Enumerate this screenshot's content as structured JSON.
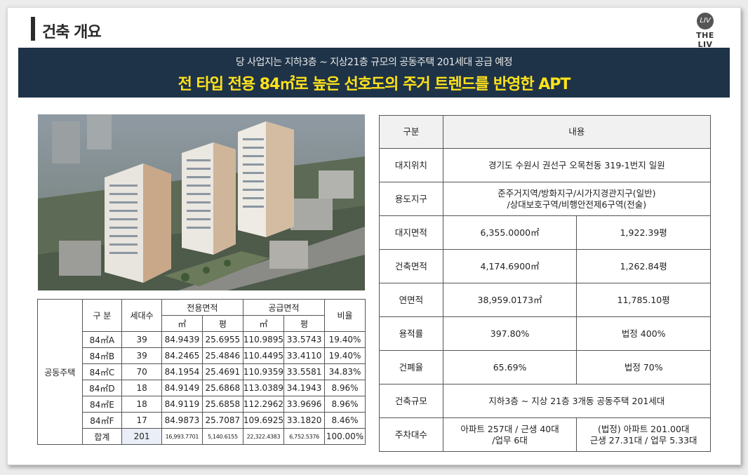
{
  "header": {
    "title": "건축 개요",
    "logo_text": "THE LIV",
    "logo_mark": "LIV"
  },
  "banner": {
    "sub": "당 사업지는 지하3층 ~ 지상21층 규모의 공동주택 201세대 공급 예정",
    "main": "전 타입 전용 84㎡로 높은 선호도의 주거 트렌드를 반영한 APT"
  },
  "colors": {
    "banner_bg": "#1e3348",
    "banner_main": "#ffe21a"
  },
  "unit_table": {
    "header": {
      "group": "구 분",
      "households": "세대수",
      "exclusive": "전용면적",
      "supply": "공급면적",
      "ratio": "비율",
      "sqm": "㎡",
      "pyeong": "평"
    },
    "category": "공동주택",
    "rows": [
      {
        "type": "84㎡A",
        "households": "39",
        "ex_sqm": "84.9439",
        "ex_py": "25.6955",
        "sup_sqm": "110.9895",
        "sup_py": "33.5743",
        "ratio": "19.40%"
      },
      {
        "type": "84㎡B",
        "households": "39",
        "ex_sqm": "84.2465",
        "ex_py": "25.4846",
        "sup_sqm": "110.4495",
        "sup_py": "33.4110",
        "ratio": "19.40%"
      },
      {
        "type": "84㎡C",
        "households": "70",
        "ex_sqm": "84.1954",
        "ex_py": "25.4691",
        "sup_sqm": "110.9359",
        "sup_py": "33.5581",
        "ratio": "34.83%"
      },
      {
        "type": "84㎡D",
        "households": "18",
        "ex_sqm": "84.9149",
        "ex_py": "25.6868",
        "sup_sqm": "113.0389",
        "sup_py": "34.1943",
        "ratio": "8.96%"
      },
      {
        "type": "84㎡E",
        "households": "18",
        "ex_sqm": "84.9119",
        "ex_py": "25.6858",
        "sup_sqm": "112.2962",
        "sup_py": "33.9696",
        "ratio": "8.96%"
      },
      {
        "type": "84㎡F",
        "households": "17",
        "ex_sqm": "84.9873",
        "ex_py": "25.7087",
        "sup_sqm": "109.6925",
        "sup_py": "33.1820",
        "ratio": "8.46%"
      }
    ],
    "total": {
      "label": "합계",
      "households": "201",
      "ex_sqm": "16,993.7701",
      "ex_py": "5,140.6155",
      "sup_sqm": "22,322.4383",
      "sup_py": "6,752.5376",
      "ratio": "100.00%"
    }
  },
  "overview_table": {
    "header": {
      "col1": "구분",
      "col2": "내용"
    },
    "location": {
      "label": "대지위치",
      "value": "경기도 수원시 권선구 오목천동 319-1번지 일원"
    },
    "zoning": {
      "label": "용도지구",
      "line1": "준주거지역/방화지구/시가지경관지구(일반)",
      "line2": "/상대보호구역/비행안전제6구역(전술)"
    },
    "site_area": {
      "label": "대지면적",
      "sqm": "6,355.0000㎡",
      "pyeong": "1,922.39평"
    },
    "building_area": {
      "label": "건축면적",
      "sqm": "4,174.6900㎡",
      "pyeong": "1,262.84평"
    },
    "gross_area": {
      "label": "연면적",
      "sqm": "38,959.0173㎡",
      "pyeong": "11,785.10평"
    },
    "far": {
      "label": "용적률",
      "value": "397.80%",
      "legal": "법정 400%"
    },
    "bcr": {
      "label": "건폐율",
      "value": "65.69%",
      "legal": "법정 70%"
    },
    "scale": {
      "label": "건축규모",
      "value": "지하3층 ~ 지상 21층 3개동 공동주택 201세대"
    },
    "parking": {
      "label": "주차대수",
      "line1": "아파트 257대 / 근생 40대",
      "line2": "/업무 6대",
      "legal1": "(법정) 아파트 201.00대",
      "legal2": "근생 27.31대 / 업무 5.33대"
    }
  }
}
